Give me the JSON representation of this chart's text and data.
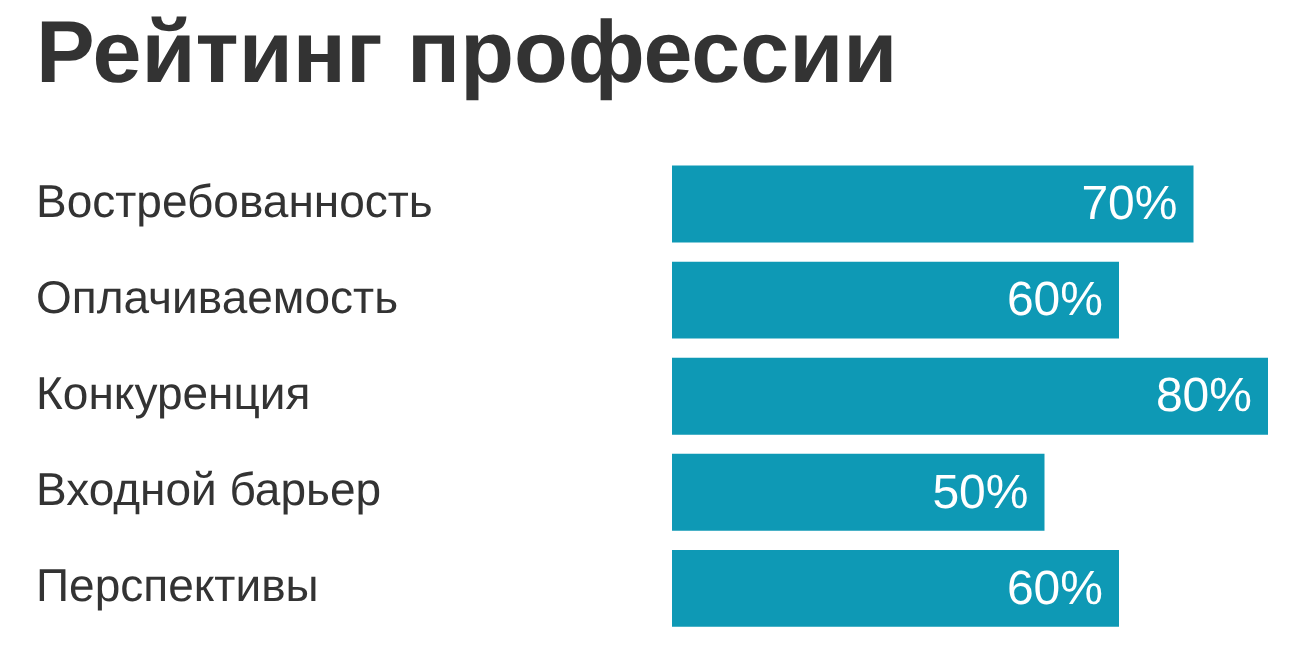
{
  "chart_data": {
    "type": "bar",
    "orientation": "horizontal",
    "title": "Рейтинг профессии",
    "categories": [
      "Востребованность",
      "Оплачиваемость",
      "Конкуренция",
      "Входной барьер",
      "Перспективы"
    ],
    "values": [
      70,
      60,
      80,
      50,
      60
    ],
    "value_labels": [
      "70%",
      "60%",
      "80%",
      "50%",
      "60%"
    ],
    "color": "#0e99b5",
    "tick_labels": "y"
  }
}
